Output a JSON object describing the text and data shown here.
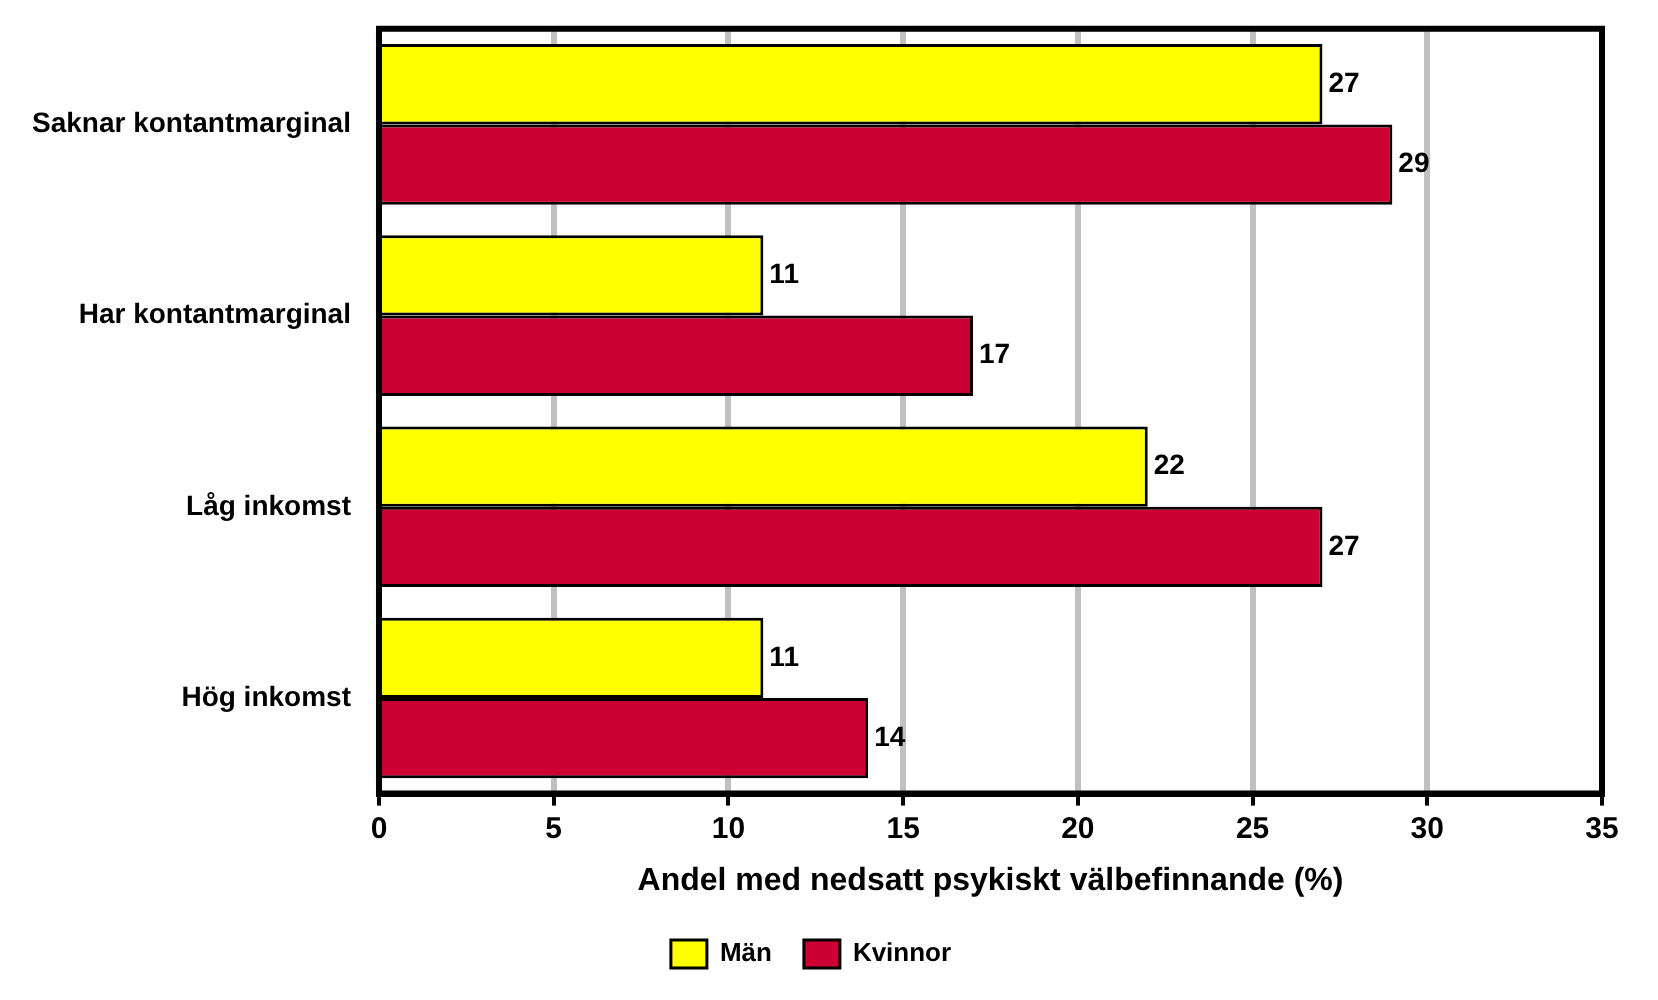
{
  "chart_data": {
    "type": "bar",
    "orientation": "horizontal",
    "xlabel": "Andel med nedsatt psykiskt välbefinnande (%)",
    "categories": [
      "Saknar kontantmarginal",
      "Har kontantmarginal",
      "Låg inkomst",
      "Hög inkomst"
    ],
    "series": [
      {
        "name": "Män",
        "color": "#ffff00",
        "values": [
          27,
          11,
          22,
          11
        ]
      },
      {
        "name": "Kvinnor",
        "color": "#cc0033",
        "values": [
          29,
          17,
          27,
          14
        ]
      }
    ],
    "xlim": [
      0,
      35
    ],
    "xticks": [
      0,
      5,
      10,
      15,
      20,
      25,
      30,
      35
    ],
    "grid": "x",
    "legend": "bottom",
    "data_labels": true
  }
}
